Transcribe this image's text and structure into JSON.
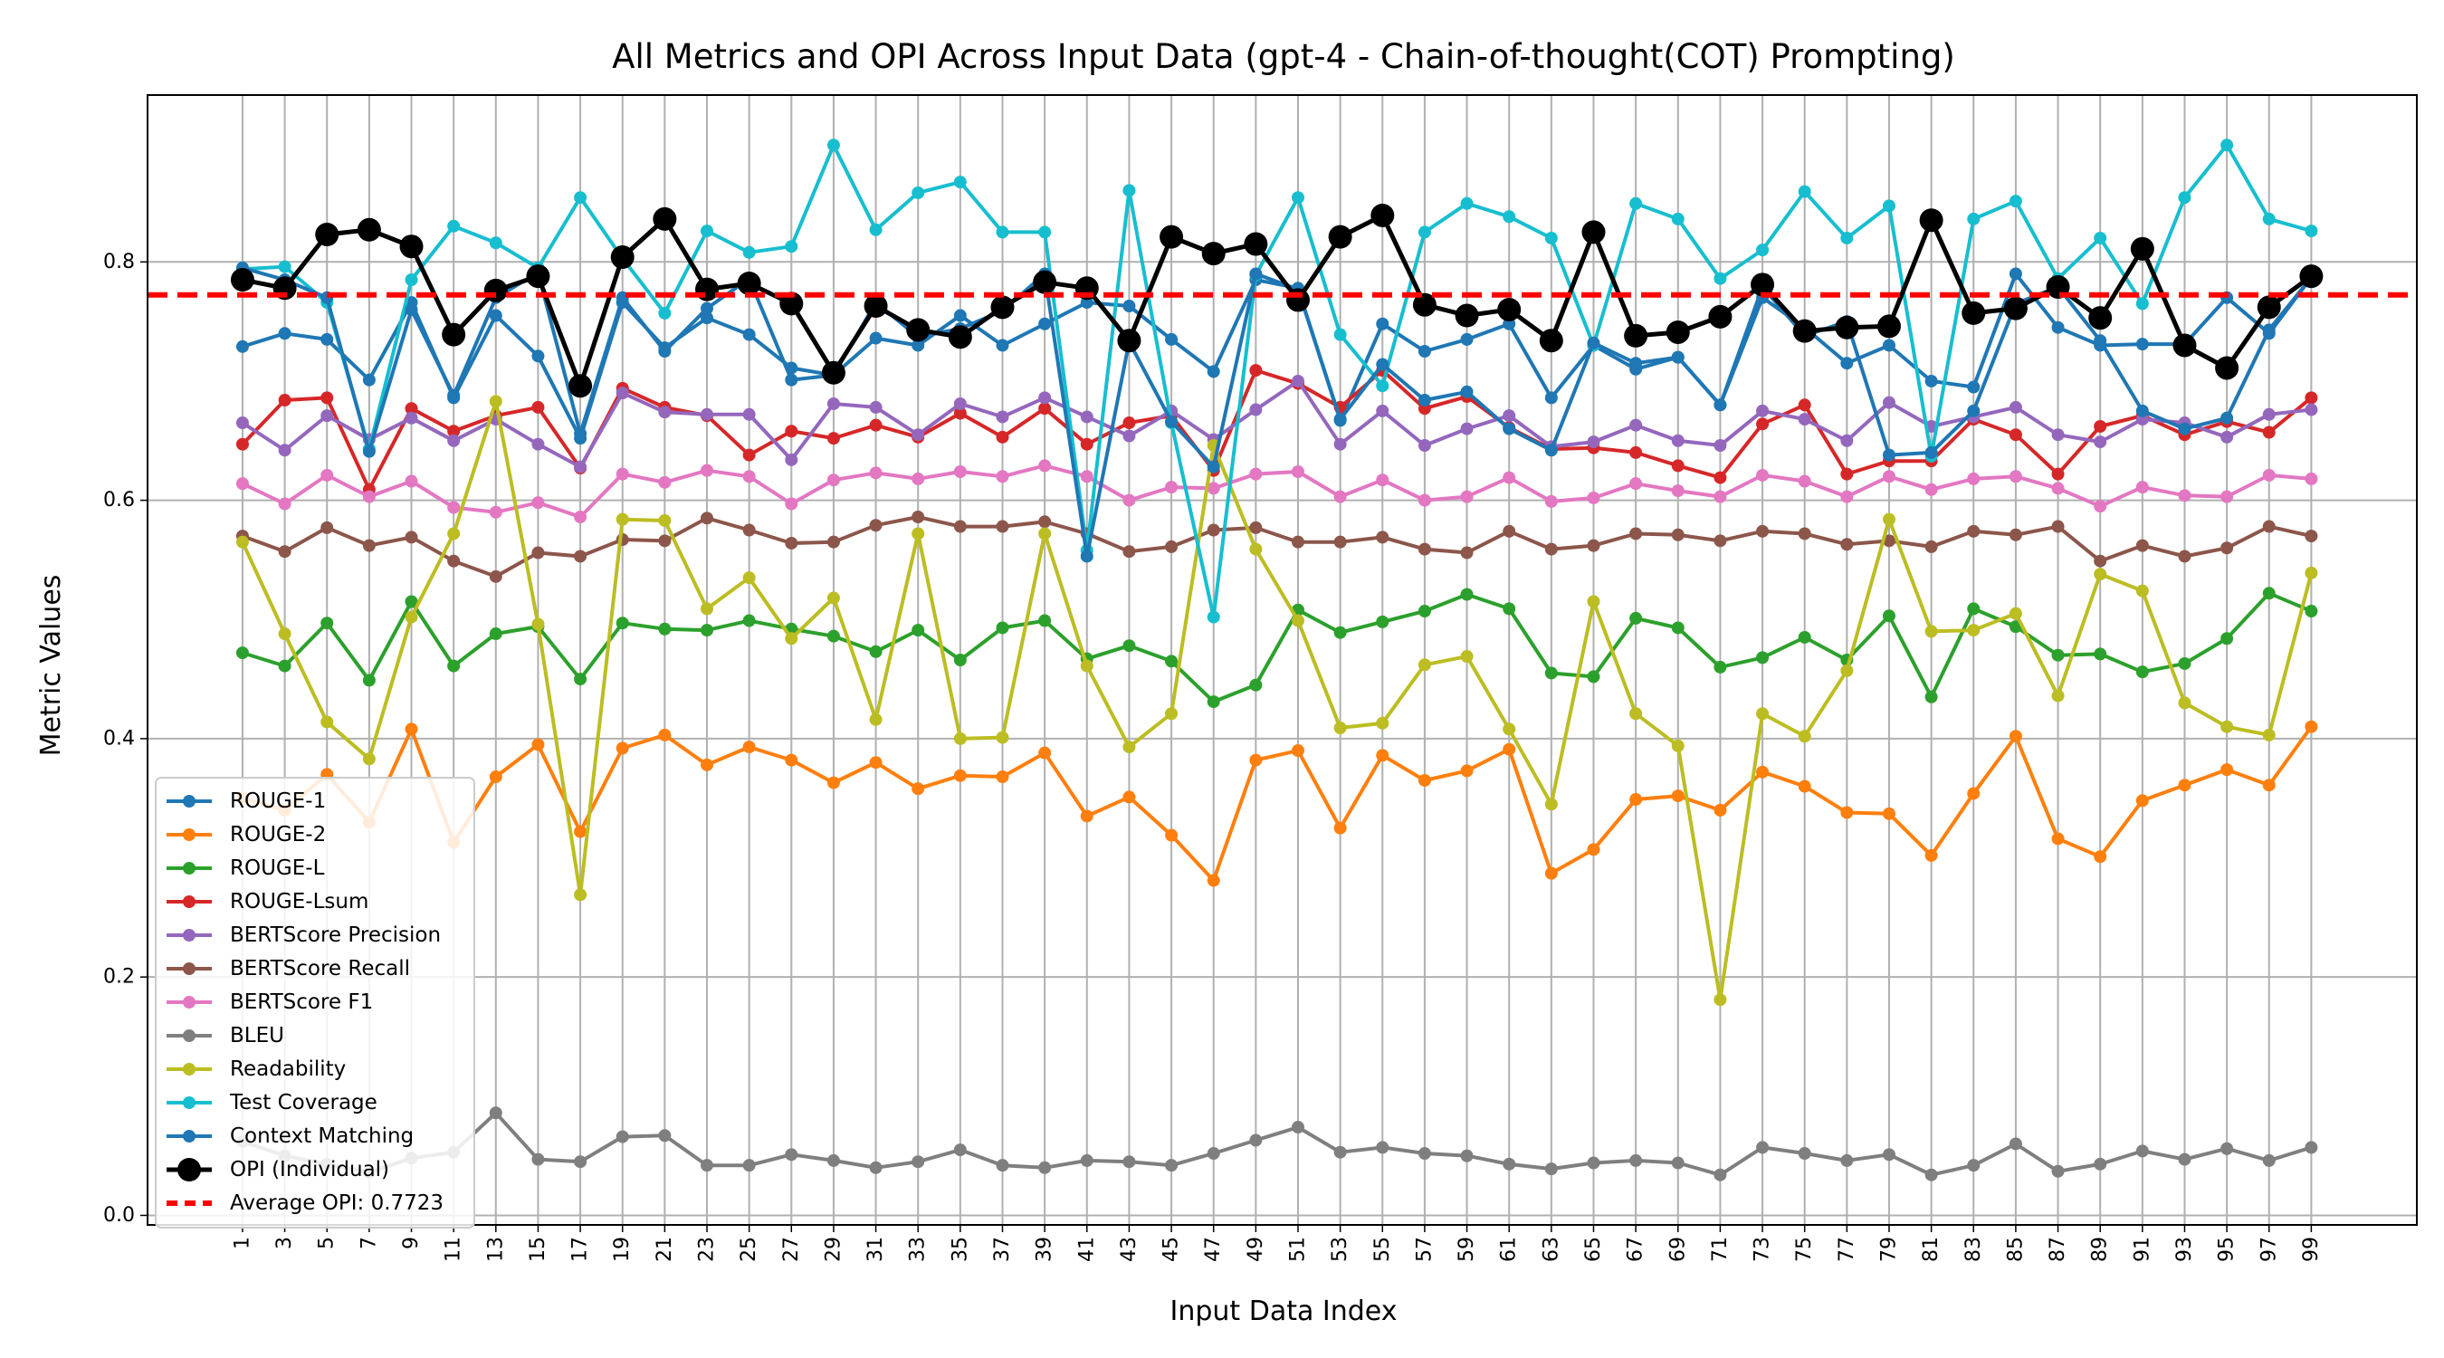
{
  "chart_data": {
    "type": "line",
    "title": "All Metrics and OPI Across Input Data (gpt-4 - Chain-of-thought(COT) Prompting)",
    "xlabel": "Input Data Index",
    "ylabel": "Metric Values",
    "x": [
      1,
      3,
      5,
      7,
      9,
      11,
      13,
      15,
      17,
      19,
      21,
      23,
      25,
      27,
      29,
      31,
      33,
      35,
      37,
      39,
      41,
      43,
      45,
      47,
      49,
      51,
      53,
      55,
      57,
      59,
      61,
      63,
      65,
      67,
      69,
      71,
      73,
      75,
      77,
      79,
      81,
      83,
      85,
      87,
      89,
      91,
      93,
      95,
      97,
      99
    ],
    "xlim": [
      -3.5,
      104
    ],
    "ylim": [
      -0.008,
      0.94
    ],
    "y_ticks": [
      0.0,
      0.2,
      0.4,
      0.6,
      0.8
    ],
    "y_tick_labels": [
      "0.0",
      "0.2",
      "0.4",
      "0.6",
      "0.8"
    ],
    "grid": true,
    "legend_position": "lower-left",
    "series": [
      {
        "name": "ROUGE-1",
        "color": "#1f77b4",
        "marker": "small",
        "values": [
          0.729,
          0.74,
          0.735,
          0.701,
          0.766,
          0.686,
          0.755,
          0.721,
          0.652,
          0.766,
          0.728,
          0.753,
          0.739,
          0.711,
          0.705,
          0.736,
          0.73,
          0.755,
          0.73,
          0.748,
          0.766,
          0.763,
          0.735,
          0.708,
          0.785,
          0.778,
          0.667,
          0.748,
          0.725,
          0.735,
          0.748,
          0.686,
          0.73,
          0.71,
          0.72,
          0.68,
          0.77,
          0.745,
          0.715,
          0.73,
          0.7,
          0.695,
          0.79,
          0.745,
          0.73,
          0.731,
          0.731,
          0.77,
          0.74,
          0.787
        ]
      },
      {
        "name": "ROUGE-2",
        "color": "#ff7f0e",
        "marker": "small",
        "values": [
          0.35,
          0.34,
          0.37,
          0.33,
          0.408,
          0.313,
          0.368,
          0.395,
          0.322,
          0.392,
          0.403,
          0.378,
          0.393,
          0.382,
          0.363,
          0.38,
          0.358,
          0.369,
          0.368,
          0.388,
          0.335,
          0.351,
          0.319,
          0.281,
          0.382,
          0.39,
          0.325,
          0.386,
          0.365,
          0.373,
          0.391,
          0.287,
          0.307,
          0.349,
          0.352,
          0.34,
          0.372,
          0.36,
          0.338,
          0.337,
          0.302,
          0.354,
          0.402,
          0.316,
          0.301,
          0.348,
          0.361,
          0.374,
          0.361,
          0.41
        ]
      },
      {
        "name": "ROUGE-L",
        "color": "#2ca02c",
        "marker": "small",
        "values": [
          0.472,
          0.461,
          0.497,
          0.449,
          0.515,
          0.461,
          0.488,
          0.494,
          0.45,
          0.497,
          0.492,
          0.491,
          0.499,
          0.492,
          0.486,
          0.473,
          0.491,
          0.466,
          0.493,
          0.499,
          0.467,
          0.478,
          0.465,
          0.431,
          0.445,
          0.508,
          0.489,
          0.498,
          0.507,
          0.521,
          0.509,
          0.455,
          0.452,
          0.501,
          0.493,
          0.46,
          0.468,
          0.485,
          0.466,
          0.503,
          0.435,
          0.509,
          0.494,
          0.47,
          0.471,
          0.456,
          0.463,
          0.484,
          0.522,
          0.507
        ]
      },
      {
        "name": "ROUGE-Lsum",
        "color": "#d62728",
        "marker": "small",
        "values": [
          0.647,
          0.684,
          0.686,
          0.609,
          0.677,
          0.658,
          0.671,
          0.678,
          0.627,
          0.694,
          0.678,
          0.671,
          0.638,
          0.658,
          0.652,
          0.663,
          0.653,
          0.673,
          0.653,
          0.677,
          0.647,
          0.665,
          0.671,
          0.625,
          0.709,
          0.698,
          0.678,
          0.709,
          0.677,
          0.687,
          0.661,
          0.643,
          0.644,
          0.64,
          0.629,
          0.619,
          0.664,
          0.68,
          0.622,
          0.633,
          0.633,
          0.668,
          0.655,
          0.622,
          0.662,
          0.671,
          0.655,
          0.666,
          0.657,
          0.686
        ]
      },
      {
        "name": "BERTScore Precision",
        "color": "#9467bd",
        "marker": "small",
        "values": [
          0.665,
          0.642,
          0.671,
          0.651,
          0.669,
          0.65,
          0.668,
          0.647,
          0.628,
          0.69,
          0.674,
          0.672,
          0.672,
          0.634,
          0.681,
          0.678,
          0.655,
          0.681,
          0.67,
          0.686,
          0.67,
          0.654,
          0.675,
          0.651,
          0.676,
          0.7,
          0.647,
          0.675,
          0.646,
          0.66,
          0.671,
          0.645,
          0.649,
          0.663,
          0.65,
          0.646,
          0.675,
          0.668,
          0.65,
          0.682,
          0.662,
          0.67,
          0.678,
          0.655,
          0.649,
          0.668,
          0.665,
          0.653,
          0.672,
          0.676
        ]
      },
      {
        "name": "BERTScore Recall",
        "color": "#8c564b",
        "marker": "small",
        "values": [
          0.57,
          0.557,
          0.577,
          0.562,
          0.569,
          0.549,
          0.536,
          0.556,
          0.553,
          0.567,
          0.566,
          0.585,
          0.575,
          0.564,
          0.565,
          0.579,
          0.586,
          0.578,
          0.578,
          0.582,
          0.572,
          0.557,
          0.561,
          0.575,
          0.577,
          0.565,
          0.565,
          0.569,
          0.559,
          0.556,
          0.574,
          0.559,
          0.562,
          0.572,
          0.571,
          0.566,
          0.574,
          0.572,
          0.563,
          0.566,
          0.561,
          0.574,
          0.571,
          0.578,
          0.549,
          0.562,
          0.553,
          0.56,
          0.578,
          0.57
        ]
      },
      {
        "name": "BERTScore F1",
        "color": "#e377c2",
        "marker": "small",
        "values": [
          0.614,
          0.597,
          0.621,
          0.603,
          0.616,
          0.594,
          0.59,
          0.598,
          0.586,
          0.622,
          0.615,
          0.625,
          0.62,
          0.597,
          0.617,
          0.623,
          0.618,
          0.624,
          0.62,
          0.629,
          0.62,
          0.6,
          0.611,
          0.61,
          0.622,
          0.624,
          0.603,
          0.617,
          0.6,
          0.603,
          0.619,
          0.599,
          0.602,
          0.614,
          0.608,
          0.603,
          0.621,
          0.616,
          0.603,
          0.62,
          0.609,
          0.618,
          0.62,
          0.61,
          0.595,
          0.611,
          0.604,
          0.603,
          0.621,
          0.618
        ]
      },
      {
        "name": "BLEU",
        "color": "#7f7f7f",
        "marker": "small",
        "values": [
          0.062,
          0.05,
          0.043,
          0.036,
          0.048,
          0.053,
          0.086,
          0.047,
          0.045,
          0.066,
          0.067,
          0.042,
          0.042,
          0.051,
          0.046,
          0.04,
          0.045,
          0.055,
          0.042,
          0.04,
          0.046,
          0.045,
          0.042,
          0.052,
          0.063,
          0.074,
          0.053,
          0.057,
          0.052,
          0.05,
          0.043,
          0.039,
          0.044,
          0.046,
          0.044,
          0.034,
          0.057,
          0.052,
          0.046,
          0.051,
          0.034,
          0.042,
          0.06,
          0.037,
          0.043,
          0.054,
          0.047,
          0.056,
          0.046,
          0.057
        ]
      },
      {
        "name": "Readability",
        "color": "#bcbd22",
        "marker": "small",
        "values": [
          0.565,
          0.488,
          0.414,
          0.383,
          0.502,
          0.572,
          0.683,
          0.496,
          0.269,
          0.584,
          0.583,
          0.509,
          0.535,
          0.484,
          0.518,
          0.416,
          0.572,
          0.4,
          0.401,
          0.572,
          0.461,
          0.393,
          0.421,
          0.646,
          0.559,
          0.499,
          0.409,
          0.413,
          0.462,
          0.469,
          0.408,
          0.345,
          0.515,
          0.421,
          0.394,
          0.181,
          0.421,
          0.402,
          0.457,
          0.584,
          0.49,
          0.491,
          0.505,
          0.436,
          0.538,
          0.524,
          0.43,
          0.41,
          0.403,
          0.539
        ]
      },
      {
        "name": "Test Coverage",
        "color": "#17becf",
        "marker": "small",
        "values": [
          0.794,
          0.796,
          0.766,
          0.643,
          0.785,
          0.83,
          0.816,
          0.795,
          0.854,
          0.803,
          0.757,
          0.826,
          0.808,
          0.813,
          0.898,
          0.827,
          0.858,
          0.867,
          0.825,
          0.825,
          0.558,
          0.86,
          0.665,
          0.502,
          0.789,
          0.854,
          0.739,
          0.696,
          0.825,
          0.849,
          0.838,
          0.82,
          0.73,
          0.849,
          0.836,
          0.786,
          0.81,
          0.859,
          0.82,
          0.847,
          0.637,
          0.836,
          0.851,
          0.786,
          0.82,
          0.765,
          0.854,
          0.898,
          0.836,
          0.826
        ]
      },
      {
        "name": "Context Matching",
        "color": "#1f77b4",
        "marker": "small",
        "values": [
          0.795,
          0.785,
          0.77,
          0.641,
          0.76,
          0.688,
          0.77,
          0.791,
          0.656,
          0.77,
          0.725,
          0.761,
          0.786,
          0.701,
          0.705,
          0.766,
          0.737,
          0.744,
          0.759,
          0.79,
          0.553,
          0.733,
          0.666,
          0.628,
          0.79,
          0.777,
          0.668,
          0.714,
          0.684,
          0.691,
          0.66,
          0.642,
          0.732,
          0.715,
          0.72,
          0.68,
          0.779,
          0.738,
          0.75,
          0.638,
          0.64,
          0.675,
          0.765,
          0.779,
          0.734,
          0.675,
          0.66,
          0.669,
          0.743,
          0.787
        ]
      },
      {
        "name": "OPI (Individual)",
        "color": "#000000",
        "marker": "large",
        "values": [
          0.785,
          0.778,
          0.823,
          0.827,
          0.813,
          0.739,
          0.776,
          0.788,
          0.696,
          0.804,
          0.836,
          0.777,
          0.782,
          0.765,
          0.707,
          0.763,
          0.743,
          0.737,
          0.762,
          0.783,
          0.778,
          0.734,
          0.821,
          0.807,
          0.815,
          0.768,
          0.821,
          0.839,
          0.764,
          0.755,
          0.76,
          0.734,
          0.825,
          0.738,
          0.741,
          0.754,
          0.781,
          0.742,
          0.745,
          0.746,
          0.835,
          0.757,
          0.761,
          0.779,
          0.753,
          0.811,
          0.73,
          0.711,
          0.762,
          0.788
        ]
      }
    ],
    "reference_line": {
      "name": "Average OPI: 0.7723",
      "value": 0.7723,
      "color": "#ff0000",
      "style": "dashed"
    }
  }
}
